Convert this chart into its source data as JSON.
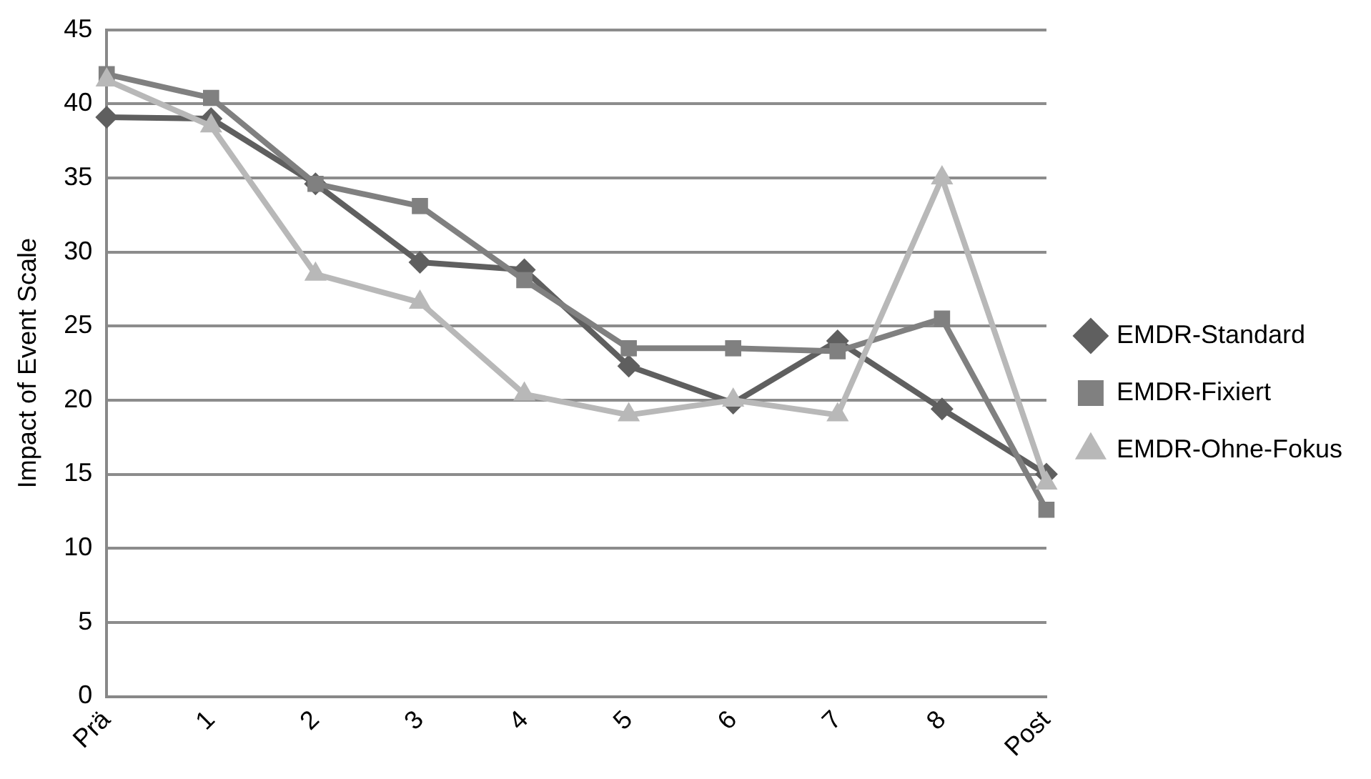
{
  "chart_data": {
    "type": "line",
    "ylabel": "Impact of Event Scale",
    "categories": [
      "Prä",
      "1",
      "2",
      "3",
      "4",
      "5",
      "6",
      "7",
      "8",
      "Post"
    ],
    "series": [
      {
        "name": "EMDR-Standard",
        "color": "#5f5f5f",
        "marker": "diamond",
        "values": [
          39.1,
          39.0,
          34.6,
          29.3,
          28.8,
          22.3,
          19.8,
          24.0,
          19.4,
          15.0
        ]
      },
      {
        "name": "EMDR-Fixiert",
        "color": "#808080",
        "marker": "square",
        "values": [
          42.0,
          40.4,
          34.6,
          33.1,
          28.1,
          23.5,
          23.5,
          23.3,
          25.5,
          12.6
        ]
      },
      {
        "name": "EMDR-Ohne-Fokus",
        "color": "#b8b8b8",
        "marker": "triangle",
        "values": [
          41.6,
          38.5,
          28.5,
          26.6,
          20.4,
          19.0,
          20.0,
          19.0,
          35.0,
          14.4
        ]
      }
    ],
    "ylim": [
      0,
      45
    ],
    "yticks": [
      0,
      5,
      10,
      15,
      20,
      25,
      30,
      35,
      40,
      45
    ],
    "grid": "y",
    "legend": "right",
    "line_style": "solid"
  }
}
